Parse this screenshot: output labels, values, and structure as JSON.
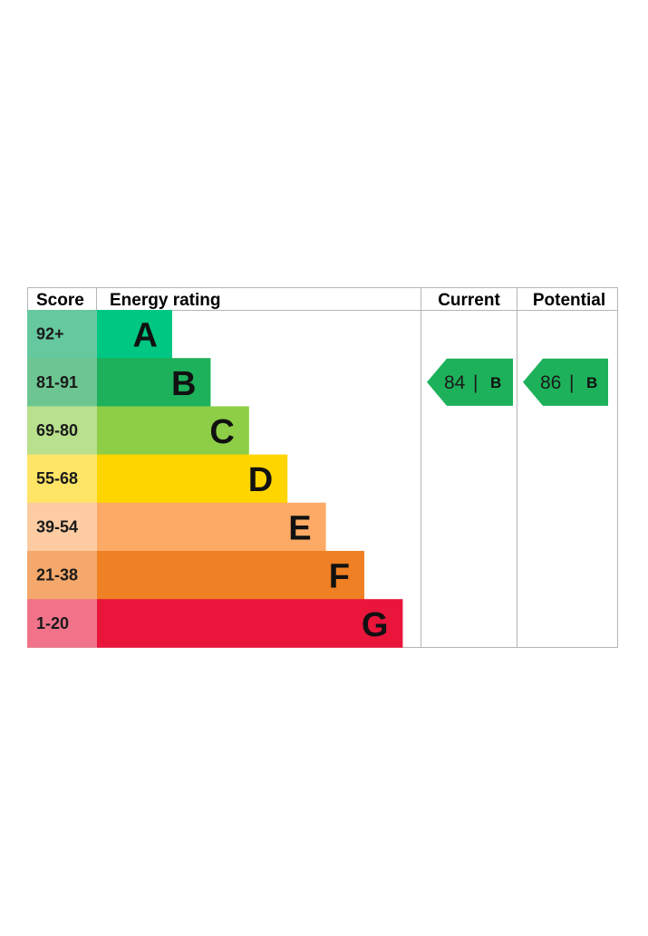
{
  "chart_data": {
    "type": "bar",
    "headers": {
      "score": "Score",
      "energy_rating": "Energy rating",
      "current": "Current",
      "potential": "Potential"
    },
    "bands": [
      {
        "letter": "A",
        "score": "92+",
        "color": "#00c781",
        "score_color": "#66c89f"
      },
      {
        "letter": "B",
        "score": "81-91",
        "color": "#1db15b",
        "score_color": "#6dc692"
      },
      {
        "letter": "C",
        "score": "69-80",
        "color": "#8dce46",
        "score_color": "#b9e08d"
      },
      {
        "letter": "D",
        "score": "55-68",
        "color": "#ffd500",
        "score_color": "#ffe566"
      },
      {
        "letter": "E",
        "score": "39-54",
        "color": "#fcaa65",
        "score_color": "#fdcca3"
      },
      {
        "letter": "F",
        "score": "21-38",
        "color": "#ef8023",
        "score_color": "#f4a86b"
      },
      {
        "letter": "G",
        "score": "1-20",
        "color": "#e9153b",
        "score_color": "#f0738a"
      }
    ],
    "current": {
      "value": 84,
      "letter": "B",
      "color": "#1db15b"
    },
    "potential": {
      "value": 86,
      "letter": "B",
      "color": "#1db15b"
    },
    "separator": "|"
  }
}
